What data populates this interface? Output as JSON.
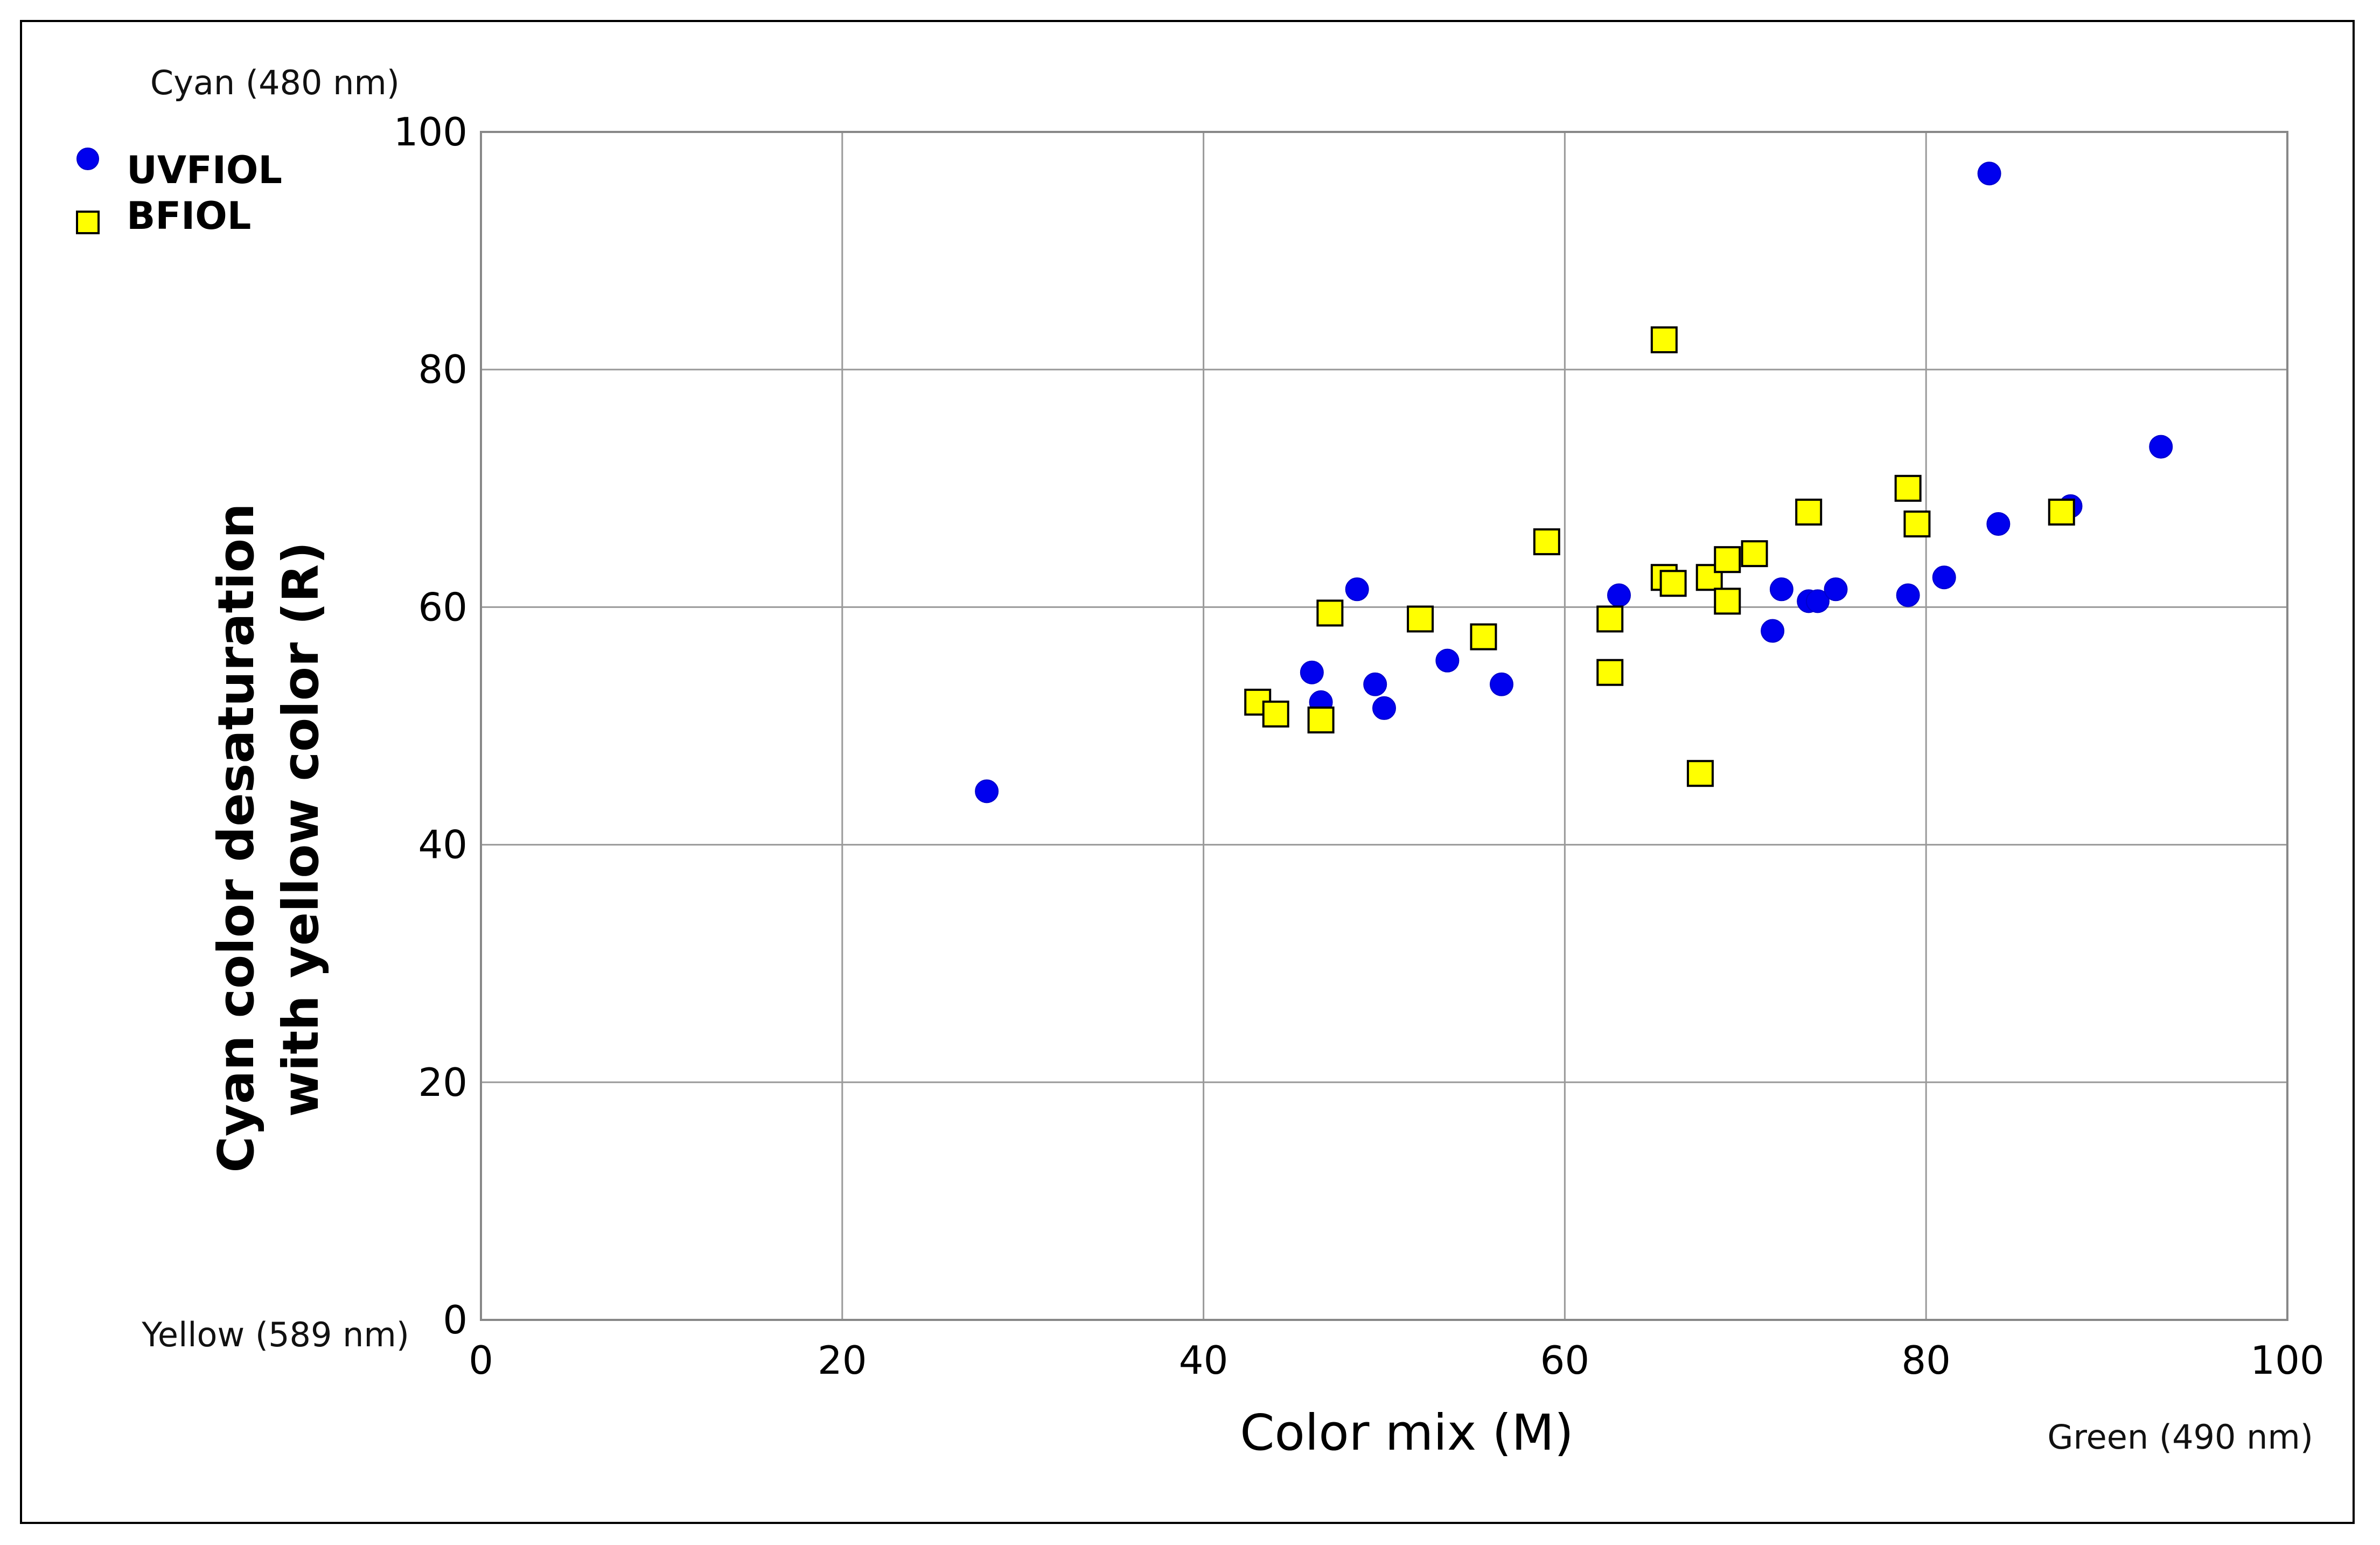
{
  "chart_data": {
    "type": "scatter",
    "xlabel": "Color mix (M)",
    "ylabel_lines": [
      "Cyan color desaturation",
      "with yellow color (R)"
    ],
    "xlim": [
      0,
      100
    ],
    "ylim": [
      0,
      100
    ],
    "x_ticks": [
      0,
      20,
      40,
      60,
      80,
      100
    ],
    "y_ticks": [
      0,
      20,
      40,
      60,
      80,
      100
    ],
    "grid": true,
    "legend_position": "top-left",
    "corner_labels": {
      "y_top": "Cyan (480 nm)",
      "y_bottom": "Yellow (589 nm)",
      "x_right": "Green (490 nm)"
    },
    "series": [
      {
        "name": "UVFIOL",
        "marker": "circle",
        "color": "#0000ee",
        "points": [
          [
            28.0,
            44.5
          ],
          [
            46.0,
            54.5
          ],
          [
            46.5,
            52.0
          ],
          [
            48.5,
            61.5
          ],
          [
            49.5,
            53.5
          ],
          [
            50.0,
            51.5
          ],
          [
            53.5,
            55.5
          ],
          [
            56.5,
            53.5
          ],
          [
            63.0,
            61.0
          ],
          [
            71.5,
            58.0
          ],
          [
            72.0,
            61.5
          ],
          [
            73.5,
            60.5
          ],
          [
            74.0,
            60.5
          ],
          [
            75.0,
            61.5
          ],
          [
            79.0,
            61.0
          ],
          [
            81.0,
            62.5
          ],
          [
            83.5,
            96.5
          ],
          [
            84.0,
            67.0
          ],
          [
            88.0,
            68.5
          ],
          [
            93.0,
            73.5
          ]
        ]
      },
      {
        "name": "BFIOL",
        "marker": "square",
        "color": "#ffff00",
        "points": [
          [
            43.0,
            52.0
          ],
          [
            44.0,
            51.0
          ],
          [
            46.5,
            50.5
          ],
          [
            47.0,
            59.5
          ],
          [
            52.0,
            59.0
          ],
          [
            55.5,
            57.5
          ],
          [
            59.0,
            65.5
          ],
          [
            62.5,
            59.0
          ],
          [
            62.5,
            54.5
          ],
          [
            65.5,
            82.5
          ],
          [
            65.5,
            62.5
          ],
          [
            66.0,
            62.0
          ],
          [
            67.5,
            46.0
          ],
          [
            68.0,
            62.5
          ],
          [
            69.0,
            64.0
          ],
          [
            69.0,
            60.5
          ],
          [
            70.5,
            64.5
          ],
          [
            73.5,
            68.0
          ],
          [
            79.0,
            70.0
          ],
          [
            79.5,
            67.0
          ],
          [
            87.5,
            68.0
          ]
        ]
      }
    ]
  }
}
